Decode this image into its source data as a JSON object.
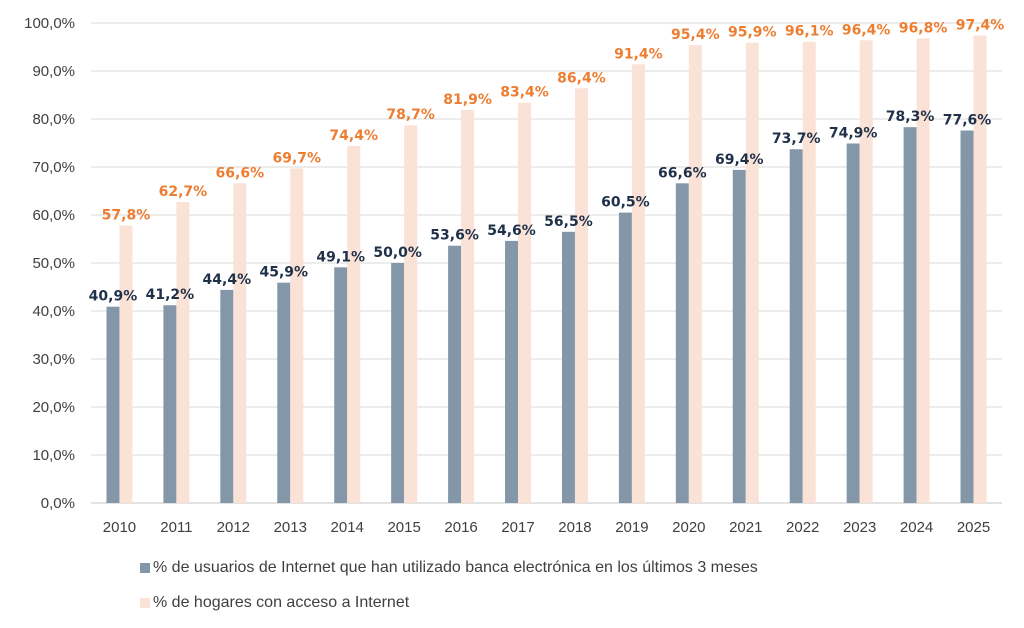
{
  "chart_data": {
    "type": "bar",
    "title": "",
    "xlabel": "",
    "ylabel": "",
    "ylim": [
      0,
      100
    ],
    "yticks": [
      "0,0%",
      "10,0%",
      "20,0%",
      "30,0%",
      "40,0%",
      "50,0%",
      "60,0%",
      "70,0%",
      "80,0%",
      "90,0%",
      "100,0%"
    ],
    "grid": true,
    "legend_position": "bottom",
    "categories": [
      "2010",
      "2011",
      "2012",
      "2013",
      "2014",
      "2015",
      "2016",
      "2017",
      "2018",
      "2019",
      "2020",
      "2021",
      "2022",
      "2023",
      "2024",
      "2025"
    ],
    "series": [
      {
        "name": "% de usuarios de Internet que han utilizado banca electrónica en los últimos 3 meses",
        "color": "#8497A8",
        "label_color": "#1F3049",
        "values": [
          40.9,
          41.2,
          44.4,
          45.9,
          49.1,
          50.0,
          53.6,
          54.6,
          56.5,
          60.5,
          66.6,
          69.4,
          73.7,
          74.9,
          78.3,
          77.6
        ],
        "labels": [
          "40,9%",
          "41,2%",
          "44,4%",
          "45,9%",
          "49,1%",
          "50,0%",
          "53,6%",
          "54,6%",
          "56,5%",
          "60,5%",
          "66,6%",
          "69,4%",
          "73,7%",
          "74,9%",
          "78,3%",
          "77,6%"
        ]
      },
      {
        "name": "% de hogares con acceso a Internet",
        "color": "#FBE2D6",
        "label_color": "#ED7D31",
        "values": [
          57.8,
          62.7,
          66.6,
          69.7,
          74.4,
          78.7,
          81.9,
          83.4,
          86.4,
          91.4,
          95.4,
          95.9,
          96.1,
          96.4,
          96.8,
          97.4
        ],
        "labels": [
          "57,8%",
          "62,7%",
          "66,6%",
          "69,7%",
          "74,4%",
          "78,7%",
          "81,9%",
          "83,4%",
          "86,4%",
          "91,4%",
          "95,4%",
          "95,9%",
          "96,1%",
          "96,4%",
          "96,8%",
          "97,4%"
        ]
      }
    ]
  }
}
